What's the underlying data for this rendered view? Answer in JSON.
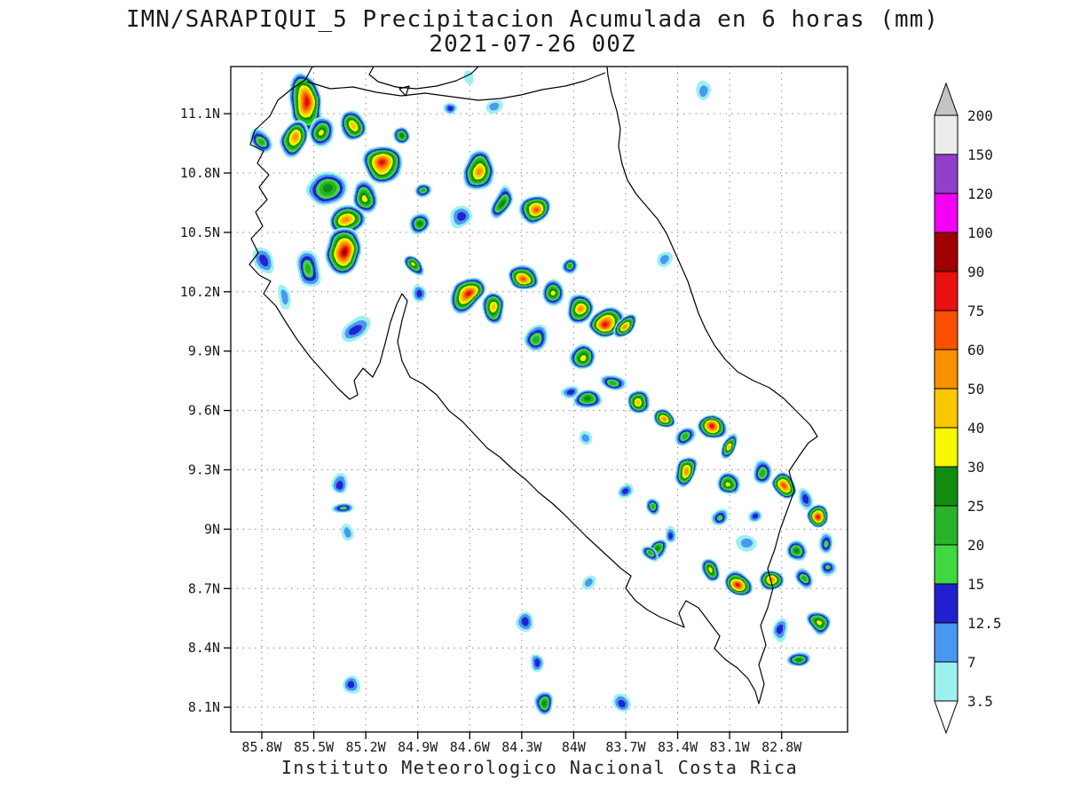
{
  "title": {
    "line1": "IMN/SARAPIQUI_5 Precipitacion Acumulada en 6 horas (mm)",
    "line2": "2021-07-26 00Z"
  },
  "caption": "Instituto Meteorologico Nacional Costa Rica",
  "axes": {
    "x_ticks": [
      "85.8W",
      "85.5W",
      "85.2W",
      "84.9W",
      "84.6W",
      "84.3W",
      "84W",
      "83.7W",
      "83.4W",
      "83.1W",
      "82.8W"
    ],
    "y_ticks": [
      "11.1N",
      "10.8N",
      "10.5N",
      "10.2N",
      "9.9N",
      "9.6N",
      "9.3N",
      "9N",
      "8.7N",
      "8.4N",
      "8.1N"
    ]
  },
  "colorbar": {
    "levels": [
      "3.5",
      "7",
      "12.5",
      "15",
      "20",
      "25",
      "30",
      "40",
      "50",
      "60",
      "75",
      "90",
      "100",
      "120",
      "150",
      "200"
    ],
    "segment_colors": [
      "#9cf0f0",
      "#4898f0",
      "#2020d0",
      "#40d840",
      "#28b428",
      "#108c10",
      "#f8f800",
      "#f8c800",
      "#f89000",
      "#f85000",
      "#e81010",
      "#a00000",
      "#f400f4",
      "#9040c8",
      "#ececec"
    ],
    "above_color": "#c4c4c4",
    "below_color": "#ffffff"
  },
  "chart_data": {
    "type": "heatmap",
    "variable": "Precipitacion Acumulada en 6 horas",
    "units": "mm",
    "model": "IMN/SARAPIQUI_5",
    "valid_time": "2021-07-26 00Z",
    "x_range": [
      "85.8W",
      "82.8W"
    ],
    "y_range": [
      "8.1N",
      "11.1N"
    ],
    "legend_levels_mm": [
      3.5,
      7,
      12.5,
      15,
      20,
      25,
      30,
      40,
      50,
      60,
      75,
      90,
      100,
      120,
      150,
      200
    ],
    "cells_note": "precip cells as [x_pct_of_plot, y_pct_of_plot_from_top, radius_px, intensity_level_index]",
    "cells": [
      [
        12.2,
        5.3,
        26,
        10
      ],
      [
        10.1,
        10.7,
        18,
        8
      ],
      [
        14.7,
        10.0,
        16,
        6
      ],
      [
        19.9,
        8.9,
        15,
        7
      ],
      [
        24.7,
        14.8,
        22,
        10
      ],
      [
        21.9,
        19.6,
        16,
        6
      ],
      [
        15.5,
        18.3,
        20,
        5
      ],
      [
        19.0,
        22.9,
        18,
        8
      ],
      [
        18.1,
        27.7,
        24,
        11
      ],
      [
        12.7,
        30.3,
        16,
        4
      ],
      [
        5.6,
        29.2,
        13,
        2
      ],
      [
        5.0,
        11.3,
        12,
        4
      ],
      [
        8.6,
        34.4,
        10,
        1
      ],
      [
        20.1,
        39.6,
        14,
        2
      ],
      [
        40.3,
        15.6,
        20,
        8
      ],
      [
        43.9,
        20.4,
        14,
        5
      ],
      [
        49.1,
        21.5,
        17,
        9
      ],
      [
        37.4,
        22.4,
        12,
        2
      ],
      [
        30.5,
        23.6,
        12,
        5
      ],
      [
        29.8,
        30.0,
        11,
        6
      ],
      [
        38.3,
        34.3,
        20,
        10
      ],
      [
        42.6,
        36.4,
        14,
        7
      ],
      [
        47.8,
        31.6,
        16,
        9
      ],
      [
        52.1,
        34.3,
        14,
        6
      ],
      [
        56.4,
        36.4,
        16,
        8
      ],
      [
        61.0,
        38.3,
        18,
        10
      ],
      [
        63.9,
        39.1,
        12,
        8
      ],
      [
        49.5,
        40.9,
        13,
        4
      ],
      [
        57.0,
        43.6,
        13,
        6
      ],
      [
        57.8,
        50.3,
        13,
        5
      ],
      [
        62.2,
        47.6,
        11,
        4
      ],
      [
        66.5,
        50.3,
        13,
        7
      ],
      [
        70.1,
        52.9,
        11,
        8
      ],
      [
        73.7,
        55.6,
        11,
        4
      ],
      [
        77.8,
        54.1,
        15,
        10
      ],
      [
        80.7,
        56.9,
        12,
        7
      ],
      [
        73.7,
        60.9,
        14,
        8
      ],
      [
        80.9,
        62.9,
        13,
        6
      ],
      [
        86.0,
        60.9,
        12,
        4
      ],
      [
        89.5,
        62.9,
        13,
        9
      ],
      [
        92.9,
        64.9,
        10,
        2
      ],
      [
        95.1,
        67.6,
        13,
        10
      ],
      [
        92.2,
        72.9,
        12,
        5
      ],
      [
        83.6,
        71.6,
        11,
        1
      ],
      [
        69.2,
        72.9,
        12,
        5
      ],
      [
        77.8,
        75.6,
        11,
        6
      ],
      [
        82.3,
        77.6,
        15,
        10
      ],
      [
        87.6,
        76.9,
        12,
        8
      ],
      [
        92.7,
        76.9,
        10,
        4
      ],
      [
        97.0,
        75.6,
        10,
        3
      ],
      [
        95.1,
        83.6,
        12,
        6
      ],
      [
        89.4,
        84.9,
        10,
        2
      ],
      [
        92.2,
        88.9,
        11,
        5
      ],
      [
        17.4,
        62.3,
        9,
        2
      ],
      [
        18.1,
        66.3,
        10,
        3
      ],
      [
        18.8,
        70.3,
        8,
        1
      ],
      [
        19.6,
        92.9,
        10,
        2
      ],
      [
        47.6,
        83.6,
        10,
        2
      ],
      [
        49.8,
        89.6,
        9,
        2
      ],
      [
        50.5,
        95.6,
        12,
        5
      ],
      [
        63.5,
        95.6,
        10,
        2
      ],
      [
        67.8,
        73.6,
        9,
        4
      ],
      [
        58.4,
        77.6,
        8,
        1
      ],
      [
        76.4,
        3.6,
        9,
        1
      ],
      [
        39.0,
        1.6,
        7,
        0
      ],
      [
        42.6,
        6.3,
        8,
        1
      ],
      [
        54.8,
        30.3,
        9,
        4
      ],
      [
        70.6,
        28.9,
        8,
        1
      ],
      [
        31.1,
        18.7,
        10,
        4
      ],
      [
        35.3,
        6.3,
        8,
        2
      ],
      [
        27.5,
        10.3,
        9,
        5
      ],
      [
        30.4,
        34.3,
        9,
        2
      ],
      [
        54.8,
        48.9,
        9,
        2
      ],
      [
        57.7,
        55.6,
        8,
        1
      ],
      [
        64.2,
        63.6,
        9,
        2
      ],
      [
        68.5,
        66.3,
        9,
        4
      ],
      [
        71.4,
        70.3,
        8,
        2
      ],
      [
        79.3,
        67.6,
        9,
        3
      ],
      [
        85.0,
        67.6,
        8,
        2
      ],
      [
        96.5,
        71.6,
        9,
        3
      ]
    ]
  }
}
